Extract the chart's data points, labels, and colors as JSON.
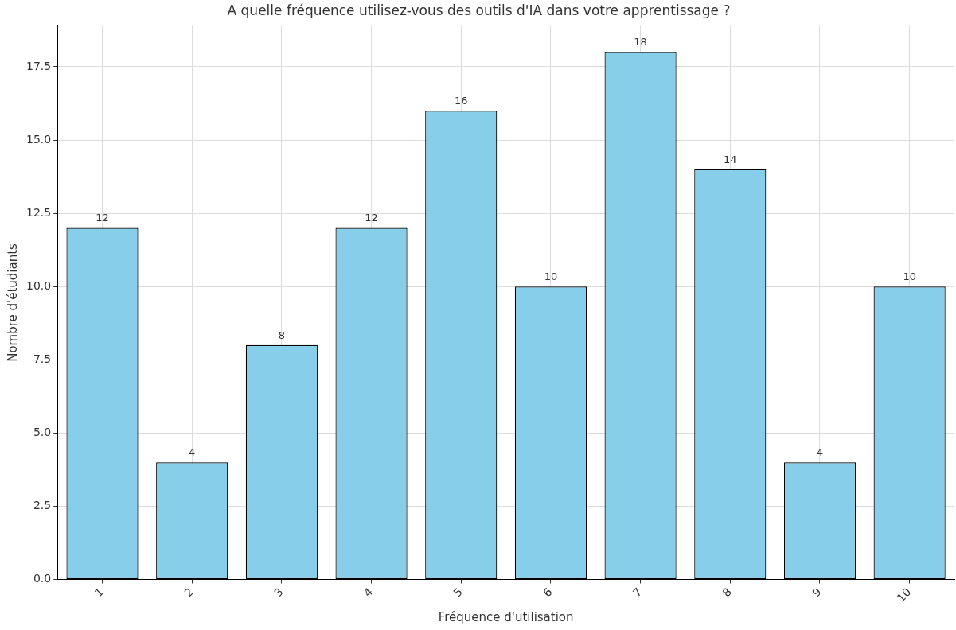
{
  "chart_data": {
    "type": "bar",
    "title": "A quelle fréquence utilisez-vous des outils d'IA dans votre apprentissage ?",
    "xlabel": "Fréquence d'utilisation",
    "ylabel": "Nombre d'étudiants",
    "categories": [
      "1",
      "2",
      "3",
      "4",
      "5",
      "6",
      "7",
      "8",
      "9",
      "10"
    ],
    "values": [
      12,
      4,
      8,
      12,
      16,
      10,
      18,
      14,
      4,
      10
    ],
    "color": "#87ceeb",
    "ylim": [
      0,
      18.9
    ],
    "yticks": [
      {
        "value": 0,
        "label": "0.0"
      },
      {
        "value": 2.5,
        "label": "2.5"
      },
      {
        "value": 5,
        "label": "5.0"
      },
      {
        "value": 7.5,
        "label": "7.5"
      },
      {
        "value": 10,
        "label": "10.0"
      },
      {
        "value": 12.5,
        "label": "12.5"
      },
      {
        "value": 15,
        "label": "15.0"
      },
      {
        "value": 17.5,
        "label": "17.5"
      }
    ],
    "grid": true,
    "data_labels": true
  }
}
